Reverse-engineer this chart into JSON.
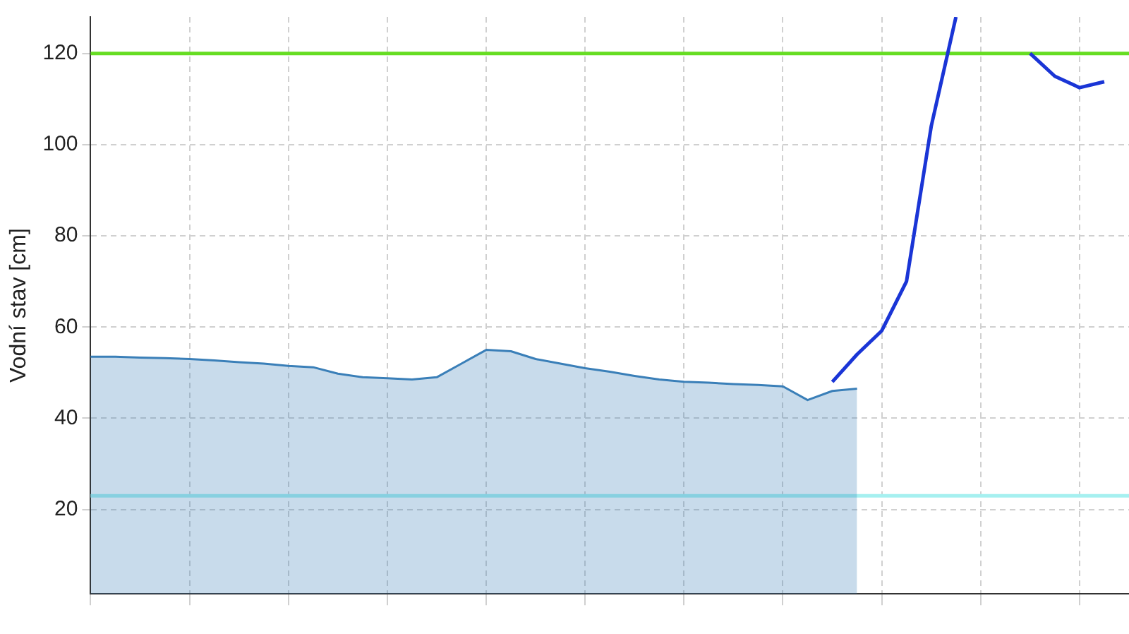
{
  "chart_data": {
    "type": "line",
    "ylabel": "Vodní stav [cm]",
    "ylim": [
      1.5,
      128
    ],
    "yticks": [
      20,
      40,
      60,
      80,
      100,
      120
    ],
    "categories": [
      null,
      null,
      null,
      null,
      null,
      null,
      null,
      null,
      null,
      null,
      null,
      null,
      null,
      null,
      null,
      null,
      null,
      null,
      null,
      null,
      null,
      null,
      null,
      null,
      null,
      null,
      null,
      null,
      null,
      null,
      null,
      null,
      null,
      null,
      null,
      null,
      null,
      null,
      null,
      null,
      null,
      null,
      null
    ],
    "grid": true,
    "legend": false,
    "series": [
      {
        "type": "area",
        "color": "#3a7fb8",
        "values": [
          53.5,
          53.5,
          53.3,
          53.2,
          53,
          52.7,
          52.3,
          52,
          51.5,
          51.2,
          49.8,
          49,
          48.8,
          48.5,
          49,
          52,
          55,
          54.7,
          53,
          52,
          51,
          50.2,
          49.3,
          48.5,
          48,
          47.8,
          47.5,
          47.3,
          47,
          44,
          46,
          46.5,
          null,
          null,
          null,
          null,
          null,
          null,
          null,
          null,
          null,
          null,
          null
        ]
      },
      {
        "type": "line",
        "color": "#1a35d6",
        "values": [
          null,
          null,
          null,
          null,
          null,
          null,
          null,
          null,
          null,
          null,
          null,
          null,
          null,
          null,
          null,
          null,
          null,
          null,
          null,
          null,
          null,
          null,
          null,
          null,
          null,
          null,
          null,
          null,
          null,
          null,
          48,
          54,
          59.2,
          70,
          104,
          128,
          null,
          null,
          120,
          115,
          112.5,
          113.8,
          null
        ]
      }
    ],
    "ref_lines": [
      {
        "axis": "y",
        "value": 120,
        "color": "#66dd22"
      },
      {
        "axis": "y",
        "value": 23,
        "color": "#a6f0f0"
      }
    ]
  }
}
